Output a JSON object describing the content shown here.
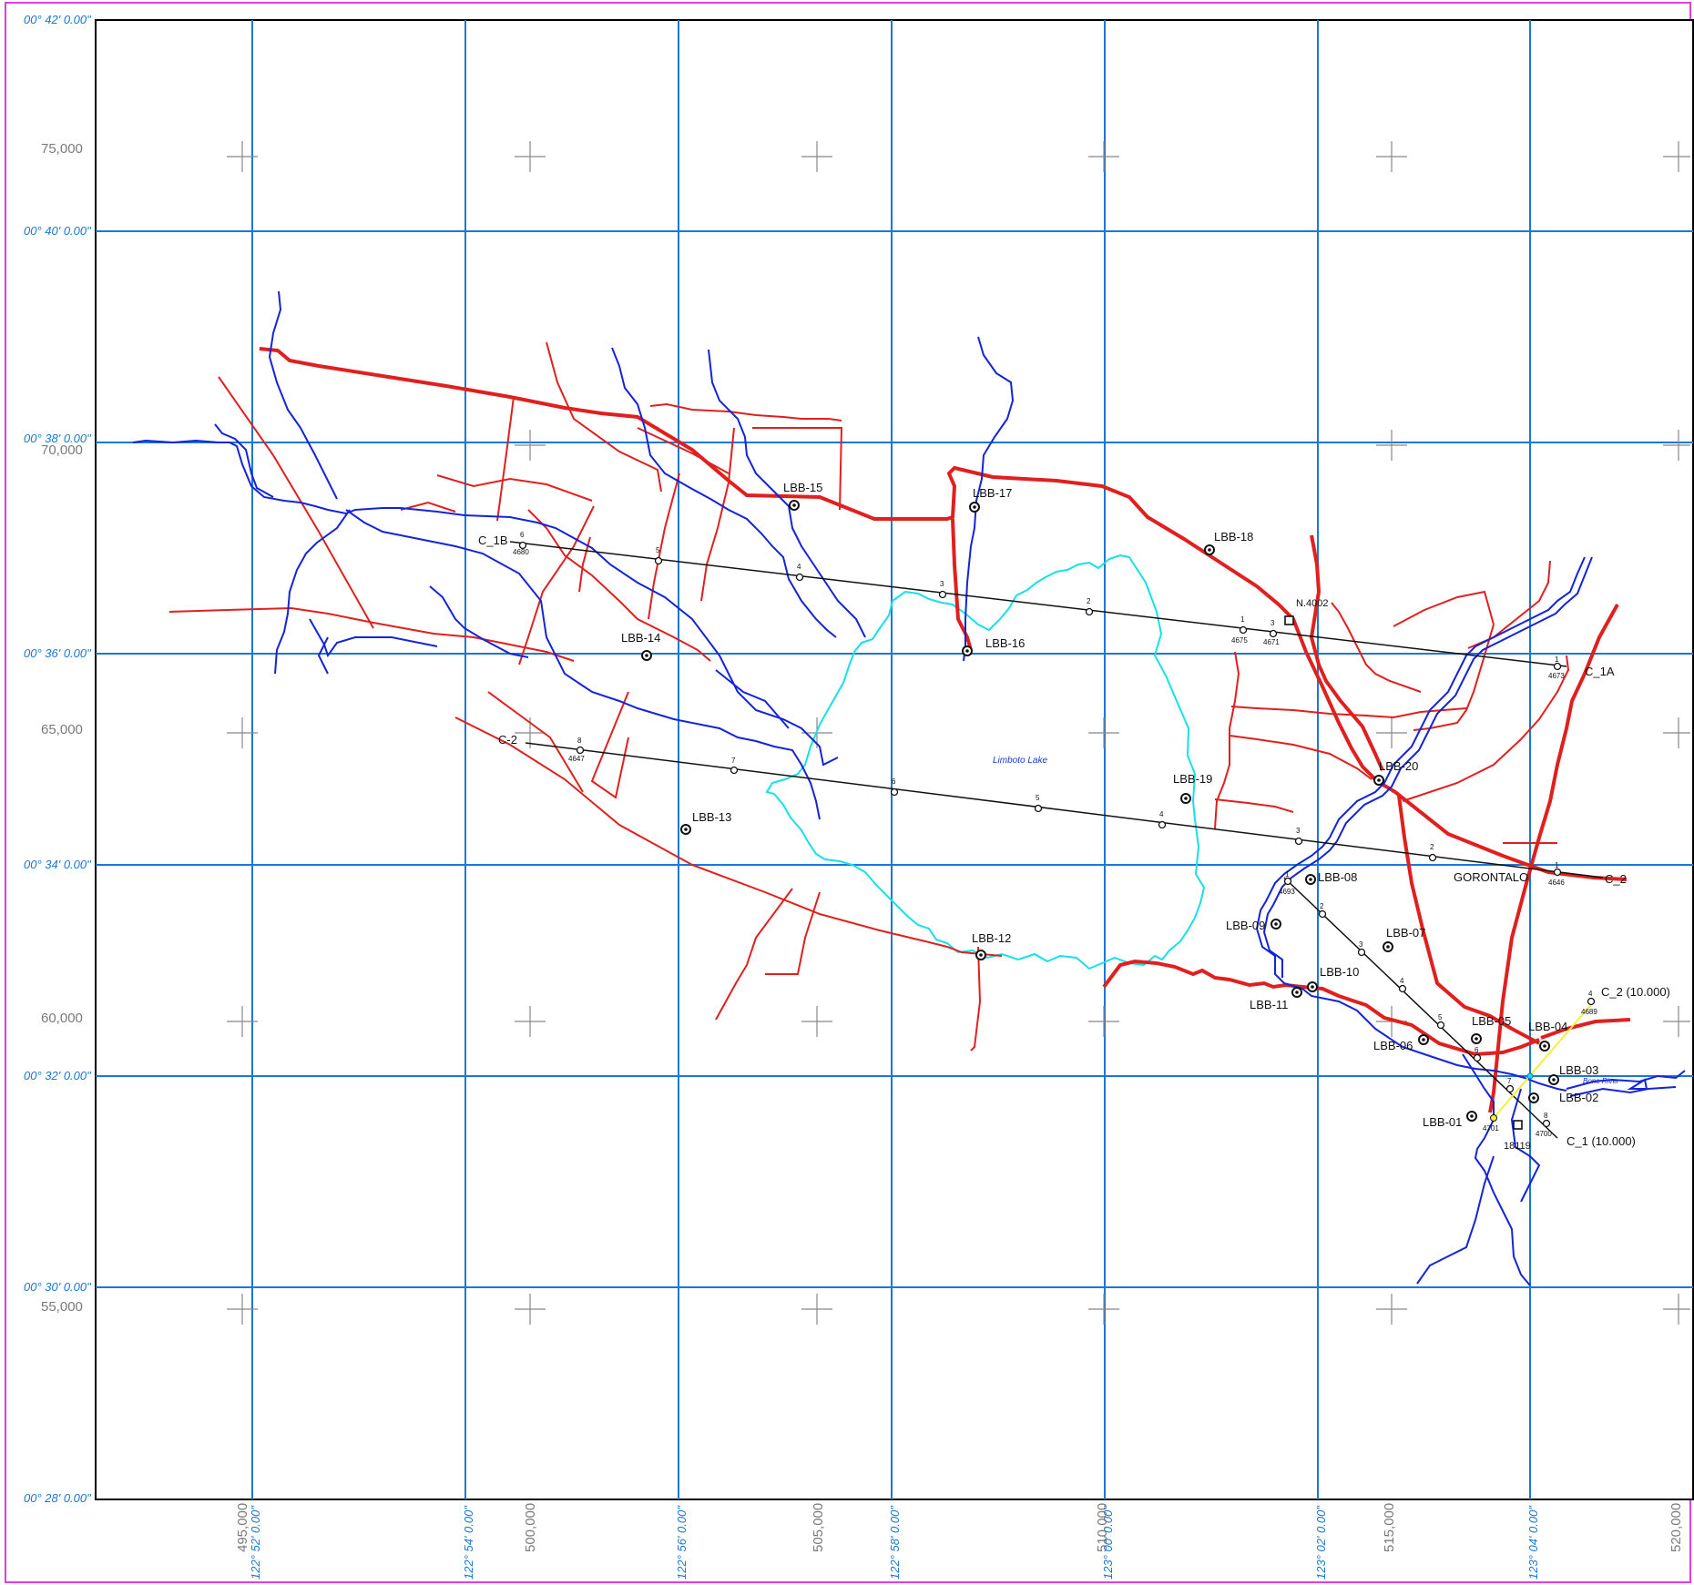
{
  "lat_labels": [
    "00° 42' 0.00\"",
    "00° 40' 0.00\"",
    "00° 38' 0.00\"",
    "00° 36' 0.00\"",
    "00° 34' 0.00\"",
    "00° 32' 0.00\"",
    "00° 30' 0.00\"",
    "00° 28' 0.00\""
  ],
  "lon_labels": [
    "122° 52' 0.00\"",
    "122° 54' 0.00\"",
    "122° 56' 0.00\"",
    "122° 58' 0.00\"",
    "123° 00' 0.00\"",
    "123° 02' 0.00\"",
    "123° 04' 0.00\""
  ],
  "northing_labels": [
    "75,000",
    "70,000",
    "65,000",
    "60,000",
    "55,000"
  ],
  "easting_labels": [
    "495,000",
    "500,000",
    "505,000",
    "510,000",
    "515,000",
    "520,000"
  ],
  "wells": [
    {
      "name": "LBB-15"
    },
    {
      "name": "LBB-17"
    },
    {
      "name": "LBB-18"
    },
    {
      "name": "LBB-14"
    },
    {
      "name": "LBB-16"
    },
    {
      "name": "LBB-19"
    },
    {
      "name": "LBB-20"
    },
    {
      "name": "LBB-13"
    },
    {
      "name": "LBB-12"
    },
    {
      "name": "LBB-08"
    },
    {
      "name": "LBB-09"
    },
    {
      "name": "LBB-07"
    },
    {
      "name": "LBB-10"
    },
    {
      "name": "LBB-11"
    },
    {
      "name": "LBB-05"
    },
    {
      "name": "LBB-06"
    },
    {
      "name": "LBB-04"
    },
    {
      "name": "LBB-03"
    },
    {
      "name": "LBB-02"
    },
    {
      "name": "LBB-01"
    }
  ],
  "lines": {
    "c1b": {
      "start": "C_1B",
      "end": "C_1A",
      "stations": [
        "6",
        "5",
        "4",
        "3",
        "2",
        "1",
        "3",
        "1"
      ],
      "codes": [
        "4680",
        "4675",
        "4671",
        "4673"
      ]
    },
    "c2": {
      "start": "C-2",
      "end": "C_2",
      "stations": [
        "8",
        "7",
        "6",
        "5",
        "4",
        "3",
        "2",
        "1"
      ],
      "codes": [
        "4647",
        "4646"
      ]
    },
    "c1": {
      "end": "C_1 (10.000)",
      "stations": [
        "1",
        "2",
        "3",
        "4",
        "5",
        "6",
        "7",
        "8"
      ],
      "codes": [
        "4693",
        "4701",
        "4700"
      ]
    },
    "c2_short": {
      "end": "C_2 (10.000)",
      "stations": [
        "4"
      ],
      "codes": [
        "4689"
      ]
    }
  },
  "places": {
    "gorontalo": "GORONTALO",
    "lake": "Limboto Lake",
    "river": "Bone River",
    "benchmark_a": "N.4002",
    "benchmark_b": "18119"
  },
  "colors": {
    "frame": "#e040e0",
    "grid": "#1a78d6",
    "road": "#e0201e",
    "river": "#1424d8",
    "lake": "#16e0e8",
    "survey_line": "#111111",
    "yellow_line": "#f0f040"
  }
}
